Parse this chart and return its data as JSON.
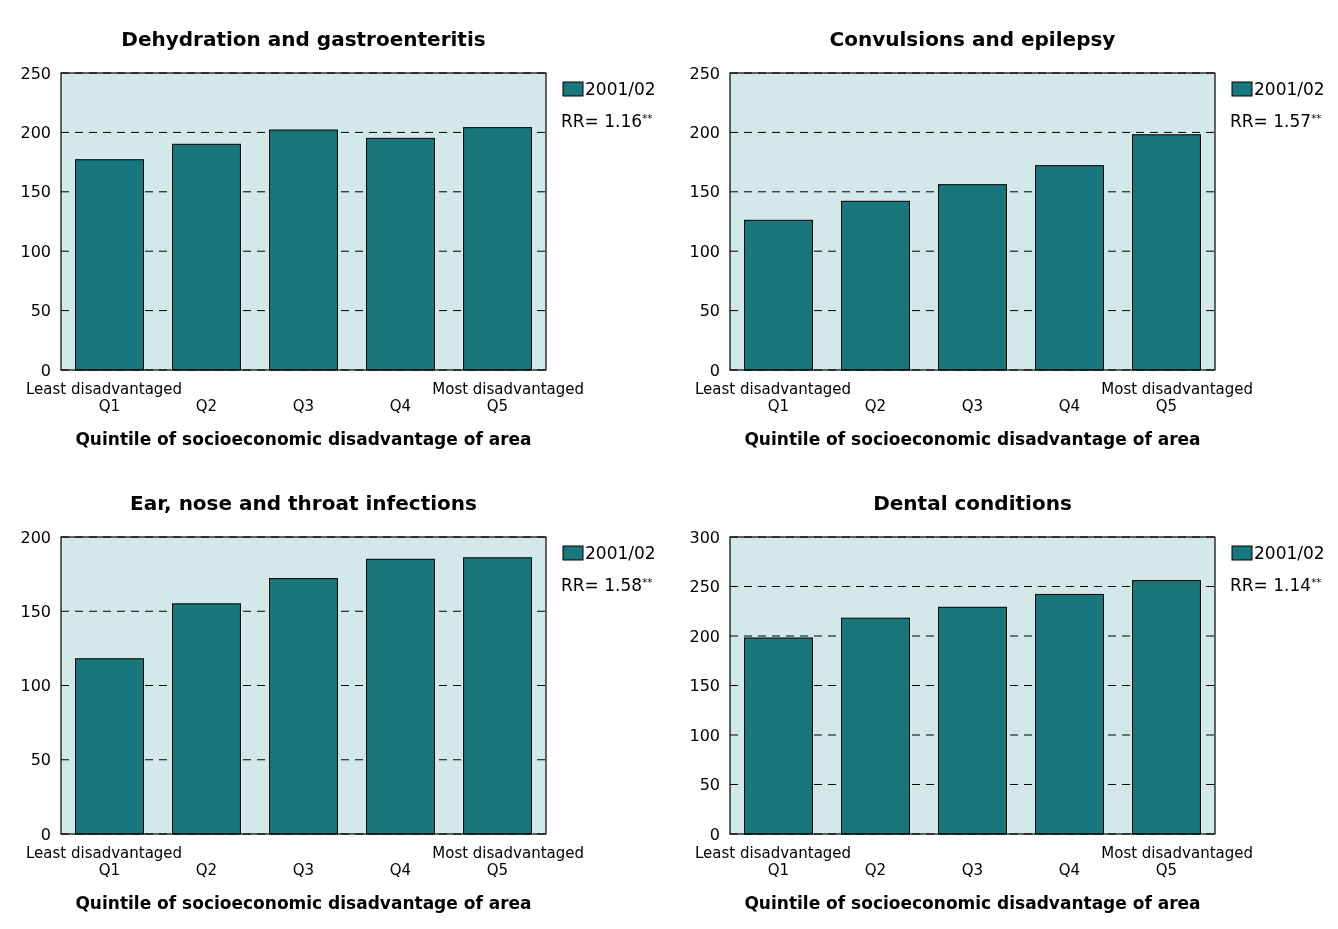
{
  "chart_data": [
    {
      "type": "bar",
      "title": "Dehydration and gastroenteritis",
      "xlabel": "Quintile of socioeconomic disadvantage of area",
      "categories": [
        "Q1",
        "Q2",
        "Q3",
        "Q4",
        "Q5"
      ],
      "series": [
        {
          "name": "2001/02",
          "color": "#17777a",
          "values": [
            177,
            190,
            202,
            195,
            204
          ]
        }
      ],
      "ylim": [
        0,
        250
      ],
      "yticks": [
        0,
        50,
        100,
        150,
        200,
        250
      ],
      "grid": "y",
      "legend": "top right",
      "annotations": [
        "Least disadvantaged",
        "Most disadvantaged",
        "RR= 1.16$^{**}$"
      ]
    },
    {
      "type": "bar",
      "title": "Convulsions and epilepsy",
      "xlabel": "Quintile of socioeconomic disadvantage of area",
      "categories": [
        "Q1",
        "Q2",
        "Q3",
        "Q4",
        "Q5"
      ],
      "series": [
        {
          "name": "2001/02",
          "color": "#17777a",
          "values": [
            126,
            142,
            156,
            172,
            198
          ]
        }
      ],
      "ylim": [
        0,
        250
      ],
      "yticks": [
        0,
        50,
        100,
        150,
        200,
        250
      ],
      "grid": "y",
      "legend": "top right",
      "annotations": [
        "Least disadvantaged",
        "Most disadvantaged",
        "RR= 1.57$^{**}$"
      ]
    },
    {
      "type": "bar",
      "title": "Ear, nose and throat infections",
      "xlabel": "Quintile of socioeconomic disadvantage of area",
      "categories": [
        "Q1",
        "Q2",
        "Q3",
        "Q4",
        "Q5"
      ],
      "series": [
        {
          "name": "2001/02",
          "color": "#17777a",
          "values": [
            118,
            155,
            172,
            185,
            186
          ]
        }
      ],
      "ylim": [
        0,
        200
      ],
      "yticks": [
        0,
        50,
        100,
        150,
        200
      ],
      "grid": "y",
      "legend": "top right",
      "annotations": [
        "Least disadvantaged",
        "Most disadvantaged",
        "RR= 1.58$^{**}$"
      ]
    },
    {
      "type": "bar",
      "title": "Dental conditions",
      "xlabel": "Quintile of socioeconomic disadvantage of area",
      "categories": [
        "Q1",
        "Q2",
        "Q3",
        "Q4",
        "Q5"
      ],
      "series": [
        {
          "name": "2001/02",
          "color": "#17777a",
          "values": [
            198,
            218,
            229,
            242,
            256
          ]
        }
      ],
      "ylim": [
        0,
        300
      ],
      "yticks": [
        0,
        50,
        100,
        150,
        200,
        250,
        300
      ],
      "grid": "y",
      "legend": "top right",
      "annotations": [
        "Least disadvantaged",
        "Most disadvantaged",
        "RR= 1.14$^{**}$"
      ]
    }
  ]
}
